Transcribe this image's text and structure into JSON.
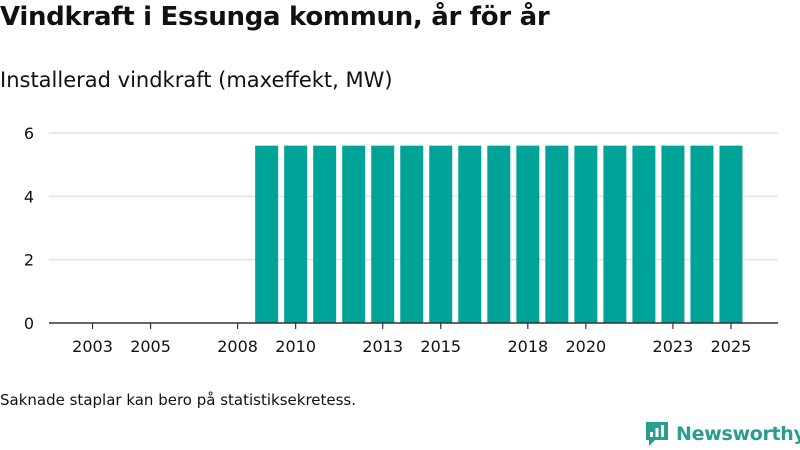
{
  "title": "Vindkraft i Essunga kommun, år för år",
  "subtitle": "Installerad vindkraft (maxeffekt, MW)",
  "footnote": "Saknade staplar kan bero på statistiksekretess.",
  "brand": {
    "name": "Newsworthy",
    "icon": "newsworthy-logo-icon"
  },
  "colors": {
    "bar": "#00a398",
    "grid": "#dddddd",
    "axis": "#333333",
    "brand": "#2a9d8f"
  },
  "chart_data": {
    "type": "bar",
    "title": "Installerad vindkraft (maxeffekt, MW)",
    "xlabel": "",
    "ylabel": "MW",
    "ylim": [
      0,
      6.5
    ],
    "y_ticks": [
      0,
      2,
      4,
      6
    ],
    "grid": true,
    "categories": [
      "2002",
      "2003",
      "2004",
      "2005",
      "2006",
      "2007",
      "2008",
      "2009",
      "2010",
      "2011",
      "2012",
      "2013",
      "2014",
      "2015",
      "2016",
      "2017",
      "2018",
      "2019",
      "2020",
      "2021",
      "2022",
      "2023",
      "2024",
      "2025"
    ],
    "x_tick_labels": [
      "2003",
      "2005",
      "2008",
      "2010",
      "2013",
      "2015",
      "2018",
      "2020",
      "2023",
      "2025"
    ],
    "values": [
      0,
      0,
      0,
      0,
      0,
      0,
      0,
      5.6,
      5.6,
      5.6,
      5.6,
      5.6,
      5.6,
      5.6,
      5.6,
      5.6,
      5.6,
      5.6,
      5.6,
      5.6,
      5.6,
      5.6,
      5.6,
      5.6
    ]
  }
}
